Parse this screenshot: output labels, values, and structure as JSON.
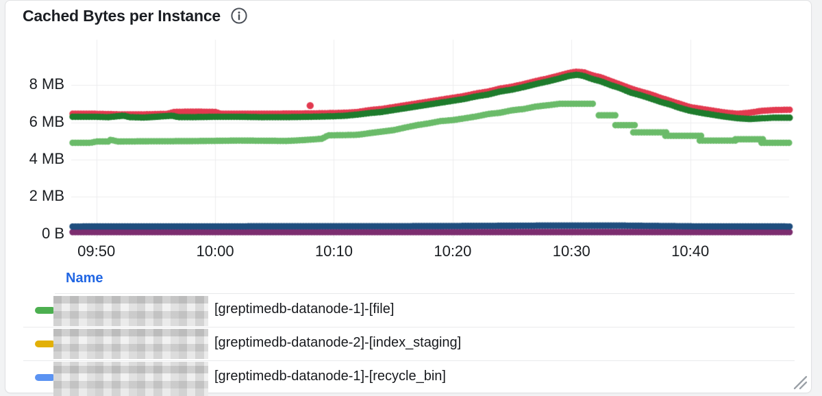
{
  "panel": {
    "title": "Cached Bytes per Instance"
  },
  "icons": {
    "info": "info-icon",
    "resize": "resize-handle-icon"
  },
  "colors": {
    "page_bg": "#f2f3f4",
    "panel_bg": "#ffffff",
    "panel_border": "#e0e1e3",
    "grid": "#ececee",
    "axis_text": "#1a1d21",
    "legend_header_text": "#2166e3",
    "legend_text": "#17191d",
    "row_divider": "#e9eaec"
  },
  "chart_data": {
    "type": "scatter",
    "title": "Cached Bytes per Instance",
    "grid": true,
    "legend_position": "bottom-table",
    "x_axis": {
      "start_time": "09:48",
      "ticks": [
        {
          "label": "09:50",
          "t": 2
        },
        {
          "label": "10:00",
          "t": 12
        },
        {
          "label": "10:10",
          "t": 22
        },
        {
          "label": "10:20",
          "t": 32
        },
        {
          "label": "10:30",
          "t": 42
        },
        {
          "label": "10:40",
          "t": 52
        }
      ],
      "t_range_minutes": [
        0,
        60.4
      ]
    },
    "y_axis": {
      "unit": "bytes",
      "ticks": [
        {
          "label": "8 MB",
          "mb": 8
        },
        {
          "label": "6 MB",
          "mb": 6
        },
        {
          "label": "4 MB",
          "mb": 4
        },
        {
          "label": "2 MB",
          "mb": 2
        },
        {
          "label": "0 B",
          "mb": 0
        }
      ],
      "ylim_mb": [
        0,
        9.9
      ]
    },
    "series": [
      {
        "name": "purple-flat",
        "color": "#7c2d6f",
        "unit": "MB",
        "segments": [
          [
            [
              0,
              0.1
            ],
            [
              60.4,
              0.1
            ]
          ]
        ]
      },
      {
        "name": "navy-flat",
        "color": "#1f4e7e",
        "unit": "MB",
        "segments": [
          [
            [
              0,
              0.4
            ],
            [
              30,
              0.42
            ],
            [
              40,
              0.45
            ],
            [
              46,
              0.45
            ],
            [
              52,
              0.41
            ],
            [
              60.4,
              0.4
            ]
          ]
        ]
      },
      {
        "name": "light-green",
        "color": "#6abb69",
        "unit": "MB",
        "segments": [
          [
            [
              0,
              4.9
            ],
            [
              1.5,
              4.9
            ],
            [
              2,
              4.97
            ],
            [
              3,
              4.97
            ],
            [
              3.2,
              5.07
            ],
            [
              3.8,
              4.97
            ],
            [
              6,
              4.98
            ],
            [
              10,
              4.99
            ],
            [
              14,
              5.02
            ],
            [
              18,
              5.0
            ],
            [
              19.5,
              5.05
            ],
            [
              21,
              5.12
            ],
            [
              21.5,
              5.3
            ],
            [
              24,
              5.33
            ],
            [
              25,
              5.42
            ],
            [
              26,
              5.5
            ],
            [
              27,
              5.58
            ],
            [
              28,
              5.72
            ],
            [
              29,
              5.85
            ],
            [
              30,
              5.95
            ],
            [
              31,
              6.07
            ],
            [
              32,
              6.12
            ],
            [
              33,
              6.22
            ],
            [
              34,
              6.32
            ],
            [
              35,
              6.45
            ],
            [
              36,
              6.52
            ],
            [
              37,
              6.65
            ],
            [
              38,
              6.72
            ],
            [
              39,
              6.85
            ],
            [
              40,
              6.92
            ],
            [
              41,
              7.0
            ],
            [
              44,
              7.0
            ]
          ],
          [
            [
              44.3,
              6.38
            ],
            [
              45.9,
              6.38
            ]
          ],
          [
            [
              45.7,
              5.85
            ],
            [
              47.4,
              5.85
            ]
          ],
          [
            [
              47.2,
              5.46
            ],
            [
              50.1,
              5.46
            ]
          ],
          [
            [
              49.9,
              5.28
            ],
            [
              53,
              5.28
            ]
          ],
          [
            [
              52.8,
              5.02
            ],
            [
              55.9,
              5.02
            ]
          ],
          [
            [
              55.8,
              5.09
            ],
            [
              58.2,
              5.09
            ]
          ],
          [
            [
              58,
              4.9
            ],
            [
              60.4,
              4.9
            ]
          ]
        ]
      },
      {
        "name": "red",
        "color": "#e2394f",
        "unit": "MB",
        "outliers": [
          [
            20,
            6.9
          ]
        ],
        "segments": [
          [
            [
              0,
              6.46
            ],
            [
              2,
              6.46
            ],
            [
              4,
              6.43
            ],
            [
              6,
              6.43
            ],
            [
              8,
              6.46
            ],
            [
              8.5,
              6.56
            ],
            [
              10,
              6.58
            ],
            [
              12,
              6.56
            ],
            [
              12.5,
              6.46
            ],
            [
              16,
              6.46
            ],
            [
              18,
              6.47
            ],
            [
              20,
              6.48
            ],
            [
              22,
              6.5
            ],
            [
              23,
              6.52
            ],
            [
              24,
              6.56
            ],
            [
              25,
              6.66
            ],
            [
              26,
              6.72
            ],
            [
              27,
              6.82
            ],
            [
              28,
              6.92
            ],
            [
              29,
              7.02
            ],
            [
              30,
              7.12
            ],
            [
              31,
              7.22
            ],
            [
              32,
              7.32
            ],
            [
              33,
              7.42
            ],
            [
              34,
              7.56
            ],
            [
              35,
              7.66
            ],
            [
              36,
              7.82
            ],
            [
              37,
              7.92
            ],
            [
              38,
              8.06
            ],
            [
              39,
              8.22
            ],
            [
              40,
              8.36
            ],
            [
              41,
              8.52
            ],
            [
              41.8,
              8.66
            ],
            [
              42.3,
              8.72
            ],
            [
              43,
              8.7
            ],
            [
              43.8,
              8.52
            ],
            [
              44.5,
              8.42
            ],
            [
              45.3,
              8.22
            ],
            [
              46,
              8.06
            ],
            [
              47,
              7.82
            ],
            [
              47.8,
              7.66
            ],
            [
              48.6,
              7.52
            ],
            [
              49.5,
              7.32
            ],
            [
              50.3,
              7.16
            ],
            [
              51,
              7.02
            ],
            [
              52,
              6.82
            ],
            [
              53,
              6.72
            ],
            [
              54,
              6.62
            ],
            [
              55,
              6.52
            ],
            [
              56,
              6.46
            ],
            [
              57,
              6.52
            ],
            [
              58,
              6.62
            ],
            [
              59,
              6.66
            ],
            [
              60.4,
              6.68
            ]
          ]
        ]
      },
      {
        "name": "dark-green",
        "color": "#1e7b2c",
        "unit": "MB",
        "segments": [
          [
            [
              0,
              6.3
            ],
            [
              2,
              6.3
            ],
            [
              3,
              6.28
            ],
            [
              4.3,
              6.36
            ],
            [
              4.8,
              6.28
            ],
            [
              6,
              6.26
            ],
            [
              8.4,
              6.36
            ],
            [
              8.9,
              6.28
            ],
            [
              10,
              6.28
            ],
            [
              12,
              6.3
            ],
            [
              14,
              6.3
            ],
            [
              16,
              6.28
            ],
            [
              18,
              6.28
            ],
            [
              20,
              6.3
            ],
            [
              22,
              6.33
            ],
            [
              23,
              6.36
            ],
            [
              24,
              6.42
            ],
            [
              25,
              6.5
            ],
            [
              26,
              6.56
            ],
            [
              27,
              6.66
            ],
            [
              28,
              6.76
            ],
            [
              29,
              6.86
            ],
            [
              30,
              6.96
            ],
            [
              31,
              7.06
            ],
            [
              32,
              7.16
            ],
            [
              33,
              7.26
            ],
            [
              34,
              7.4
            ],
            [
              35,
              7.5
            ],
            [
              36,
              7.66
            ],
            [
              37,
              7.76
            ],
            [
              38,
              7.9
            ],
            [
              39,
              8.06
            ],
            [
              40,
              8.2
            ],
            [
              41,
              8.36
            ],
            [
              41.8,
              8.5
            ],
            [
              42.5,
              8.56
            ],
            [
              43,
              8.5
            ],
            [
              43.8,
              8.32
            ],
            [
              44.5,
              8.2
            ],
            [
              45.3,
              8.0
            ],
            [
              46,
              7.86
            ],
            [
              47,
              7.6
            ],
            [
              47.8,
              7.46
            ],
            [
              48.6,
              7.3
            ],
            [
              49.5,
              7.1
            ],
            [
              50.3,
              6.96
            ],
            [
              51,
              6.8
            ],
            [
              52,
              6.62
            ],
            [
              53,
              6.5
            ],
            [
              54,
              6.4
            ],
            [
              55,
              6.3
            ],
            [
              56,
              6.22
            ],
            [
              57,
              6.18
            ],
            [
              58,
              6.22
            ],
            [
              59,
              6.25
            ],
            [
              60.4,
              6.25
            ]
          ]
        ]
      }
    ]
  },
  "legend": {
    "header": "Name",
    "rows": [
      {
        "marker_color": "#4caf50",
        "prefix_redacted": true,
        "label": "[greptimedb-datanode-1]-[file]"
      },
      {
        "marker_color": "#e2b007",
        "prefix_redacted": true,
        "label": "[greptimedb-datanode-2]-[index_staging]"
      },
      {
        "marker_color": "#5b93f2",
        "prefix_redacted": true,
        "label": "[greptimedb-datanode-1]-[recycle_bin]"
      }
    ]
  }
}
